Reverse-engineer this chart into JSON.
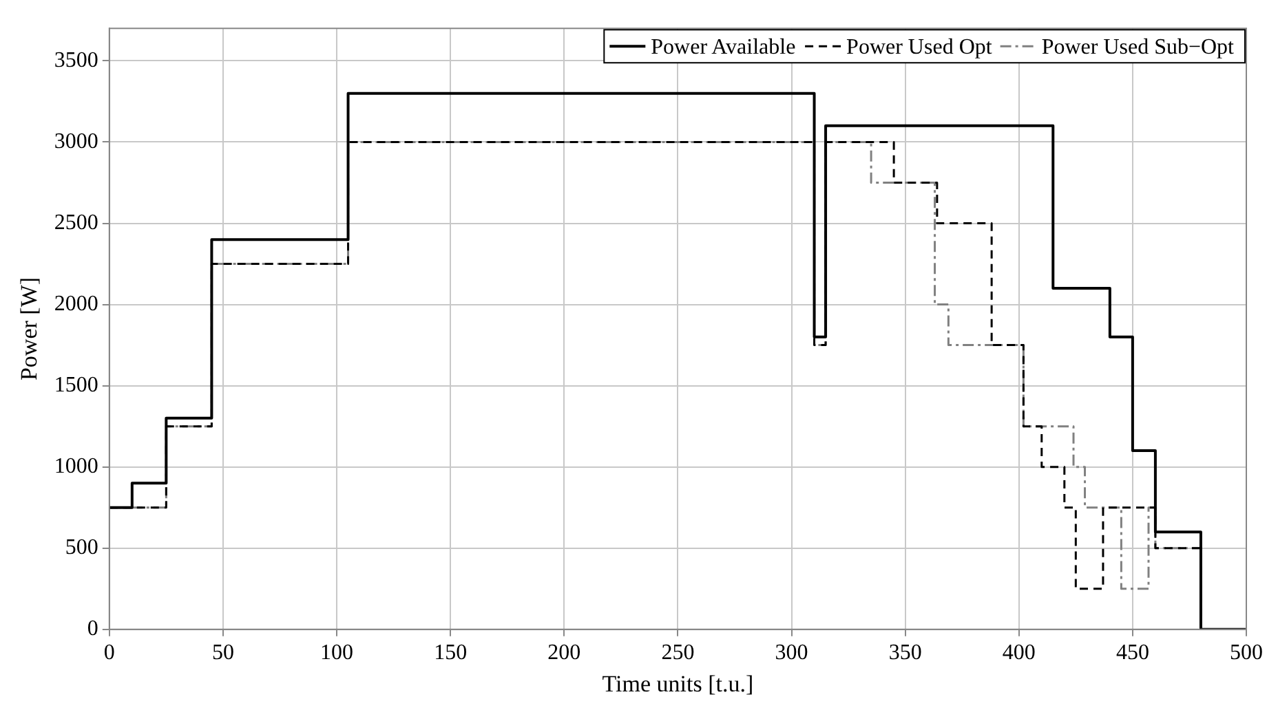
{
  "chart_data": {
    "type": "step",
    "xlabel": "Time units [t.u.]",
    "ylabel": "Power [W]",
    "xlim": [
      0,
      500
    ],
    "xticks": [
      0,
      50,
      100,
      150,
      200,
      250,
      300,
      350,
      400,
      450,
      500
    ],
    "ylim": [
      0,
      3700
    ],
    "yticks": [
      0,
      500,
      1000,
      1500,
      2000,
      2500,
      3000,
      3500
    ],
    "grid": true,
    "legend": "top right",
    "series": [
      {
        "name": "Power Available",
        "color": "#000000",
        "line_style": "solid",
        "x": [
          0,
          10,
          25,
          45,
          105,
          310,
          315,
          415,
          440,
          450,
          460,
          480,
          500
        ],
        "values": [
          750,
          900,
          1300,
          2400,
          3300,
          1800,
          3100,
          2100,
          1800,
          1100,
          600,
          0,
          0
        ]
      },
      {
        "name": "Power Used Opt",
        "color": "#000000",
        "line_style": "dashed",
        "x": [
          0,
          25,
          45,
          105,
          310,
          315,
          345,
          364,
          388,
          402,
          410,
          420,
          425,
          437,
          460,
          480,
          500
        ],
        "values": [
          750,
          1250,
          2250,
          3000,
          1750,
          3000,
          2750,
          2500,
          1750,
          1250,
          1000,
          750,
          250,
          750,
          500,
          0,
          0
        ]
      },
      {
        "name": "Power Used Sub−Opt",
        "color": "#808080",
        "line_style": "dashdot",
        "x": [
          0,
          25,
          45,
          105,
          310,
          315,
          335,
          363,
          369,
          402,
          424,
          429,
          445,
          457,
          460,
          480,
          500
        ],
        "values": [
          750,
          1250,
          2250,
          3000,
          1750,
          3000,
          2750,
          2000,
          1750,
          1250,
          1000,
          750,
          250,
          750,
          500,
          0,
          0
        ]
      }
    ]
  }
}
